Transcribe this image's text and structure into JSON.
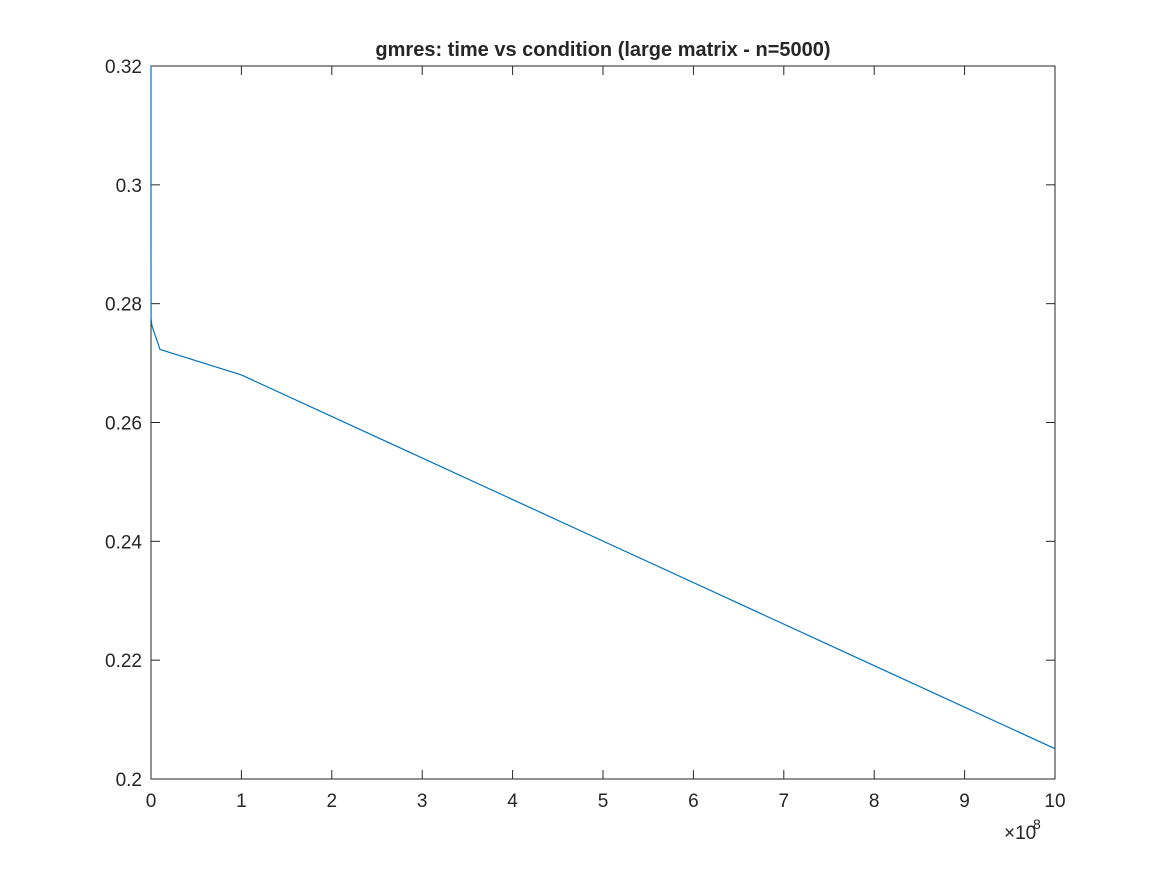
{
  "chart_data": {
    "type": "line",
    "title": "gmres: time vs condition (large matrix - n=5000)",
    "xlabel": "",
    "ylabel": "",
    "xlim": [
      0,
      10
    ],
    "ylim": [
      0.2,
      0.32
    ],
    "x_scale_multiplier": "×10",
    "x_scale_exponent": "8",
    "x_ticks": [
      0,
      1,
      2,
      3,
      4,
      5,
      6,
      7,
      8,
      9,
      10
    ],
    "x_tick_labels": [
      "0",
      "1",
      "2",
      "3",
      "4",
      "5",
      "6",
      "7",
      "8",
      "9",
      "10"
    ],
    "y_ticks": [
      0.2,
      0.22,
      0.24,
      0.26,
      0.28,
      0.3,
      0.32
    ],
    "y_tick_labels": [
      "0.2",
      "0.22",
      "0.24",
      "0.26",
      "0.28",
      "0.3",
      "0.32"
    ],
    "grid": false,
    "series": [
      {
        "name": "gmres",
        "color": "#0072BD",
        "x": [
          0,
          0.0001,
          0.001,
          0.01,
          0.1,
          1,
          10
        ],
        "y": [
          0.32,
          0.2885,
          0.2775,
          0.2763,
          0.2723,
          0.268,
          0.2051
        ]
      }
    ]
  }
}
